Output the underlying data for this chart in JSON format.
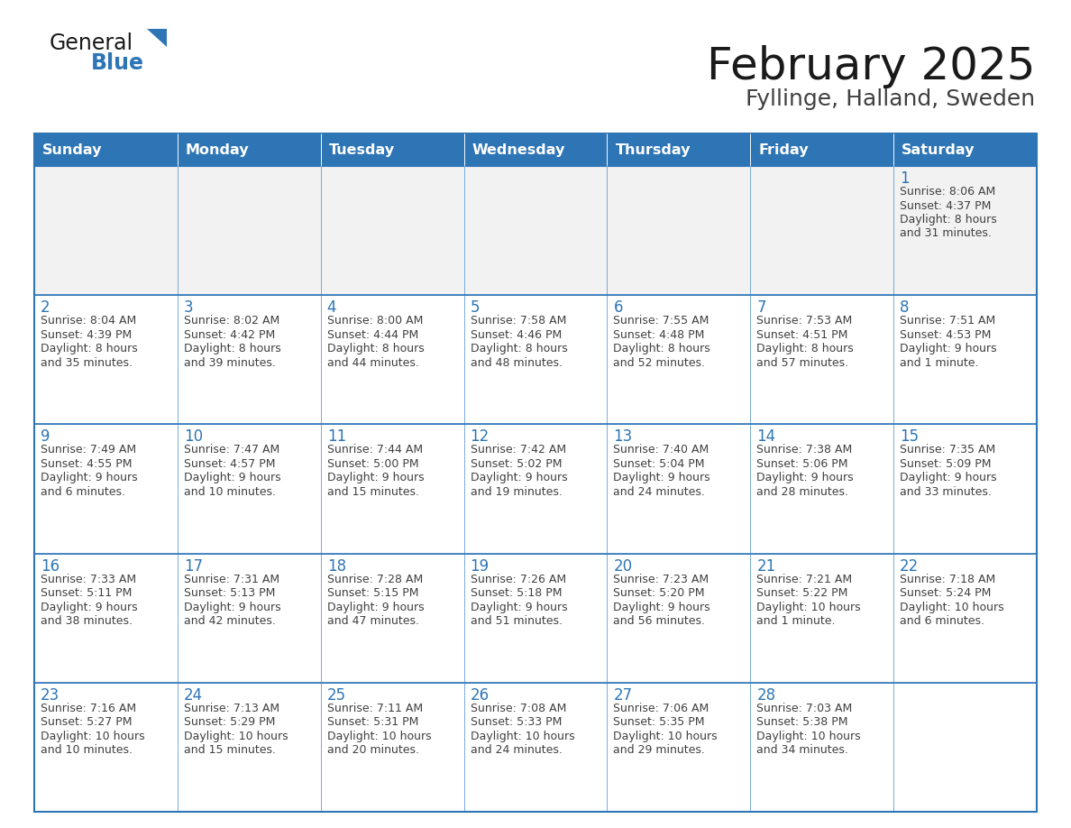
{
  "title": "February 2025",
  "subtitle": "Fyllinge, Halland, Sweden",
  "days_of_week": [
    "Sunday",
    "Monday",
    "Tuesday",
    "Wednesday",
    "Thursday",
    "Friday",
    "Saturday"
  ],
  "header_bg": "#2E75B6",
  "header_text": "#FFFFFF",
  "cell_bg": "#FFFFFF",
  "cell_bg_alt": "#F2F2F2",
  "cell_border": "#2E75B6",
  "cell_border_inner": "#5B9BD5",
  "day_number_color": "#2E75B6",
  "cell_text_color": "#404040",
  "title_color": "#1a1a1a",
  "subtitle_color": "#404040",
  "logo_general_color": "#1a1a1a",
  "logo_blue_color": "#2E75B6",
  "calendar_data": [
    [
      null,
      null,
      null,
      null,
      null,
      null,
      {
        "day": 1,
        "sunrise": "8:06 AM",
        "sunset": "4:37 PM",
        "daylight": "8 hours\nand 31 minutes."
      }
    ],
    [
      {
        "day": 2,
        "sunrise": "8:04 AM",
        "sunset": "4:39 PM",
        "daylight": "8 hours\nand 35 minutes."
      },
      {
        "day": 3,
        "sunrise": "8:02 AM",
        "sunset": "4:42 PM",
        "daylight": "8 hours\nand 39 minutes."
      },
      {
        "day": 4,
        "sunrise": "8:00 AM",
        "sunset": "4:44 PM",
        "daylight": "8 hours\nand 44 minutes."
      },
      {
        "day": 5,
        "sunrise": "7:58 AM",
        "sunset": "4:46 PM",
        "daylight": "8 hours\nand 48 minutes."
      },
      {
        "day": 6,
        "sunrise": "7:55 AM",
        "sunset": "4:48 PM",
        "daylight": "8 hours\nand 52 minutes."
      },
      {
        "day": 7,
        "sunrise": "7:53 AM",
        "sunset": "4:51 PM",
        "daylight": "8 hours\nand 57 minutes."
      },
      {
        "day": 8,
        "sunrise": "7:51 AM",
        "sunset": "4:53 PM",
        "daylight": "9 hours\nand 1 minute."
      }
    ],
    [
      {
        "day": 9,
        "sunrise": "7:49 AM",
        "sunset": "4:55 PM",
        "daylight": "9 hours\nand 6 minutes."
      },
      {
        "day": 10,
        "sunrise": "7:47 AM",
        "sunset": "4:57 PM",
        "daylight": "9 hours\nand 10 minutes."
      },
      {
        "day": 11,
        "sunrise": "7:44 AM",
        "sunset": "5:00 PM",
        "daylight": "9 hours\nand 15 minutes."
      },
      {
        "day": 12,
        "sunrise": "7:42 AM",
        "sunset": "5:02 PM",
        "daylight": "9 hours\nand 19 minutes."
      },
      {
        "day": 13,
        "sunrise": "7:40 AM",
        "sunset": "5:04 PM",
        "daylight": "9 hours\nand 24 minutes."
      },
      {
        "day": 14,
        "sunrise": "7:38 AM",
        "sunset": "5:06 PM",
        "daylight": "9 hours\nand 28 minutes."
      },
      {
        "day": 15,
        "sunrise": "7:35 AM",
        "sunset": "5:09 PM",
        "daylight": "9 hours\nand 33 minutes."
      }
    ],
    [
      {
        "day": 16,
        "sunrise": "7:33 AM",
        "sunset": "5:11 PM",
        "daylight": "9 hours\nand 38 minutes."
      },
      {
        "day": 17,
        "sunrise": "7:31 AM",
        "sunset": "5:13 PM",
        "daylight": "9 hours\nand 42 minutes."
      },
      {
        "day": 18,
        "sunrise": "7:28 AM",
        "sunset": "5:15 PM",
        "daylight": "9 hours\nand 47 minutes."
      },
      {
        "day": 19,
        "sunrise": "7:26 AM",
        "sunset": "5:18 PM",
        "daylight": "9 hours\nand 51 minutes."
      },
      {
        "day": 20,
        "sunrise": "7:23 AM",
        "sunset": "5:20 PM",
        "daylight": "9 hours\nand 56 minutes."
      },
      {
        "day": 21,
        "sunrise": "7:21 AM",
        "sunset": "5:22 PM",
        "daylight": "10 hours\nand 1 minute."
      },
      {
        "day": 22,
        "sunrise": "7:18 AM",
        "sunset": "5:24 PM",
        "daylight": "10 hours\nand 6 minutes."
      }
    ],
    [
      {
        "day": 23,
        "sunrise": "7:16 AM",
        "sunset": "5:27 PM",
        "daylight": "10 hours\nand 10 minutes."
      },
      {
        "day": 24,
        "sunrise": "7:13 AM",
        "sunset": "5:29 PM",
        "daylight": "10 hours\nand 15 minutes."
      },
      {
        "day": 25,
        "sunrise": "7:11 AM",
        "sunset": "5:31 PM",
        "daylight": "10 hours\nand 20 minutes."
      },
      {
        "day": 26,
        "sunrise": "7:08 AM",
        "sunset": "5:33 PM",
        "daylight": "10 hours\nand 24 minutes."
      },
      {
        "day": 27,
        "sunrise": "7:06 AM",
        "sunset": "5:35 PM",
        "daylight": "10 hours\nand 29 minutes."
      },
      {
        "day": 28,
        "sunrise": "7:03 AM",
        "sunset": "5:38 PM",
        "daylight": "10 hours\nand 34 minutes."
      },
      null
    ]
  ]
}
